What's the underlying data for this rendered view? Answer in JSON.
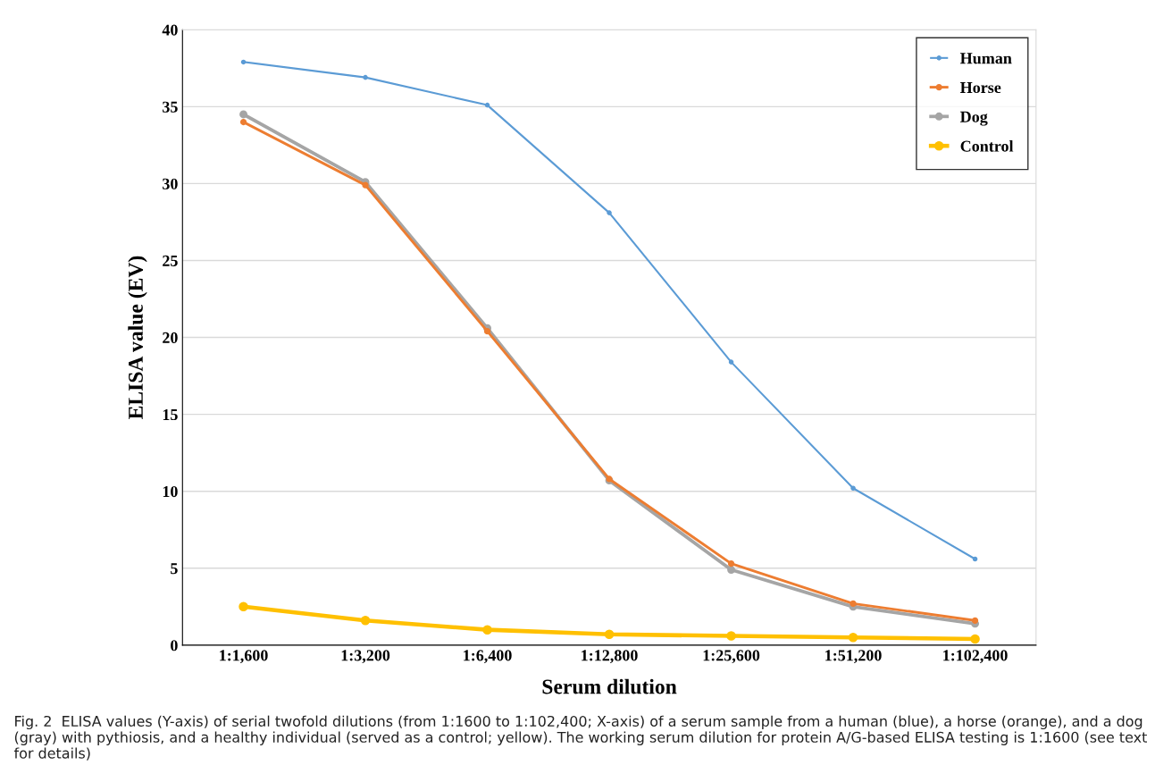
{
  "chart_data": {
    "type": "line",
    "xlabel": "Serum dilution",
    "ylabel": "ELISA value (EV)",
    "categories": [
      "1:1,600",
      "1:3,200",
      "1:6,400",
      "1:12,800",
      "1:25,600",
      "1:51,200",
      "1:102,400"
    ],
    "series": [
      {
        "name": "Human",
        "color": "#5b9bd5",
        "values": [
          37.9,
          36.9,
          35.1,
          28.1,
          18.4,
          10.2,
          5.6
        ]
      },
      {
        "name": "Horse",
        "color": "#ed7d31",
        "values": [
          34.0,
          29.9,
          20.4,
          10.8,
          5.3,
          2.7,
          1.6
        ]
      },
      {
        "name": "Dog",
        "color": "#a5a5a5",
        "values": [
          34.5,
          30.1,
          20.6,
          10.7,
          4.9,
          2.5,
          1.4
        ]
      },
      {
        "name": "Control",
        "color": "#ffc000",
        "values": [
          2.5,
          1.6,
          1.0,
          0.7,
          0.6,
          0.5,
          0.4
        ]
      }
    ],
    "ylim": [
      0,
      40
    ],
    "yticks": [
      0,
      5,
      10,
      15,
      20,
      25,
      30,
      35,
      40
    ],
    "grid": "y",
    "legend": "top right",
    "marker": "circle",
    "line_style": "solid",
    "annotations": [
      "Fig. 2  ELISA values (Y-axis) of serial twofold dilutions (from 1:1600 to 1:102,400; X-axis) of a serum sample from a human (blue), a horse (orange), and a dog (gray) with pythiosis, and a healthy individual (served as a control; yellow). The working serum dilution for protein A/G-based ELISA testing is 1:1600 (see text for details)"
    ]
  }
}
